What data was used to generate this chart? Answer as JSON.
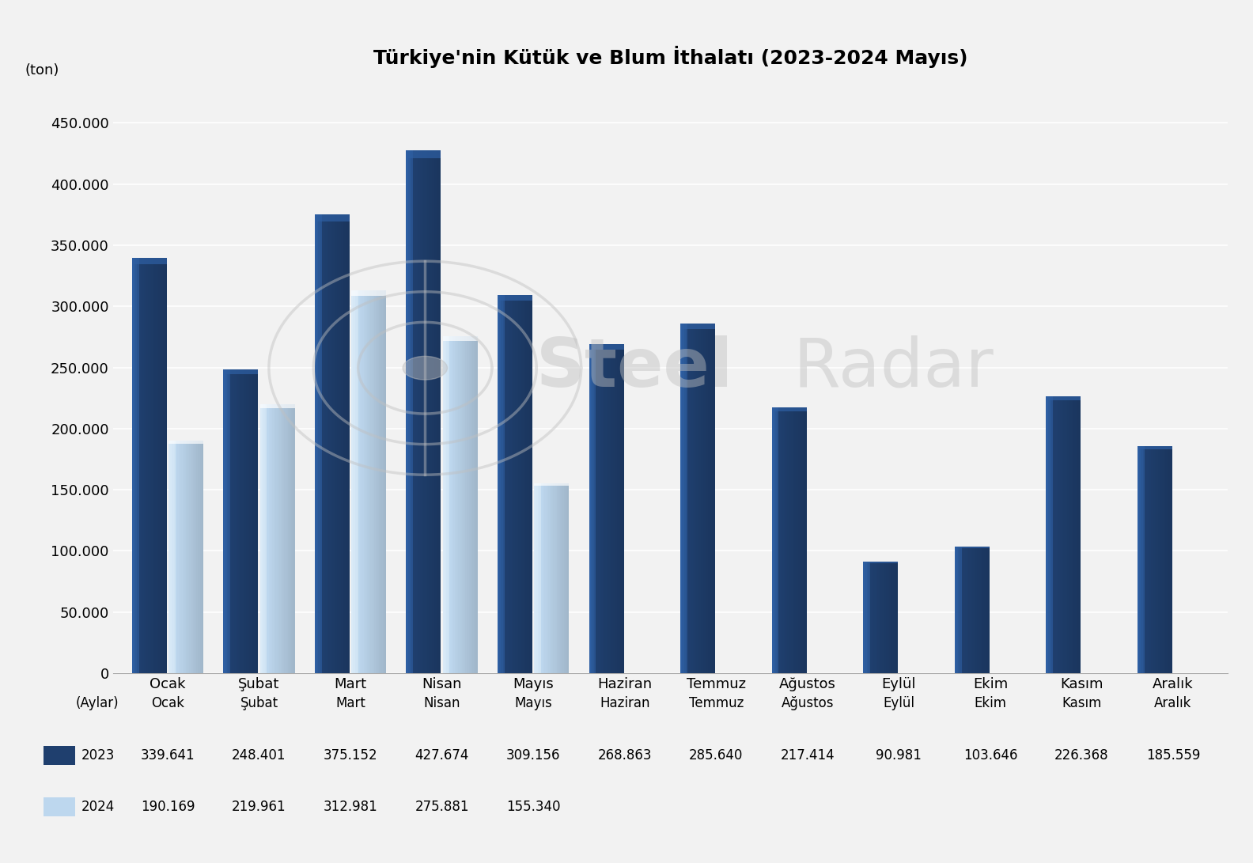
{
  "title": "Türkiye'nin Kütük ve Blum İthalatı (2023-2024 Mayıs)",
  "ylabel": "(ton)",
  "xlabel": "(Aylar)",
  "months": [
    "Ocak",
    "Şubat",
    "Mart",
    "Nisan",
    "Mayıs",
    "Haziran",
    "Temmuz",
    "Ağustos",
    "Eylül",
    "Ekim",
    "Kasım",
    "Aralık"
  ],
  "data_2023": [
    339641,
    248401,
    375152,
    427674,
    309156,
    268863,
    285640,
    217414,
    90981,
    103646,
    226368,
    185559
  ],
  "data_2024": [
    190169,
    219961,
    312981,
    275881,
    155340,
    null,
    null,
    null,
    null,
    null,
    null,
    null
  ],
  "labels_2023": [
    "339.641",
    "248.401",
    "375.152",
    "427.674",
    "309.156",
    "268.863",
    "285.640",
    "217.414",
    "90.981",
    "103.646",
    "226.368",
    "185.559"
  ],
  "labels_2024": [
    "190.169",
    "219.961",
    "312.981",
    "275.881",
    "155.340"
  ],
  "color_2023_main": "#1F3F6E",
  "color_2023_light": "#2E5FA3",
  "color_2024_main": "#BDD7EE",
  "color_2024_light": "#DAEAF7",
  "ylim": [
    0,
    480000
  ],
  "yticks": [
    0,
    50000,
    100000,
    150000,
    200000,
    250000,
    300000,
    350000,
    400000,
    450000
  ],
  "background_color": "#F2F2F2",
  "legend_2023": "2023",
  "legend_2024": "2024",
  "bar_width": 0.38,
  "title_fontsize": 18,
  "tick_fontsize": 13,
  "label_fontsize": 12
}
